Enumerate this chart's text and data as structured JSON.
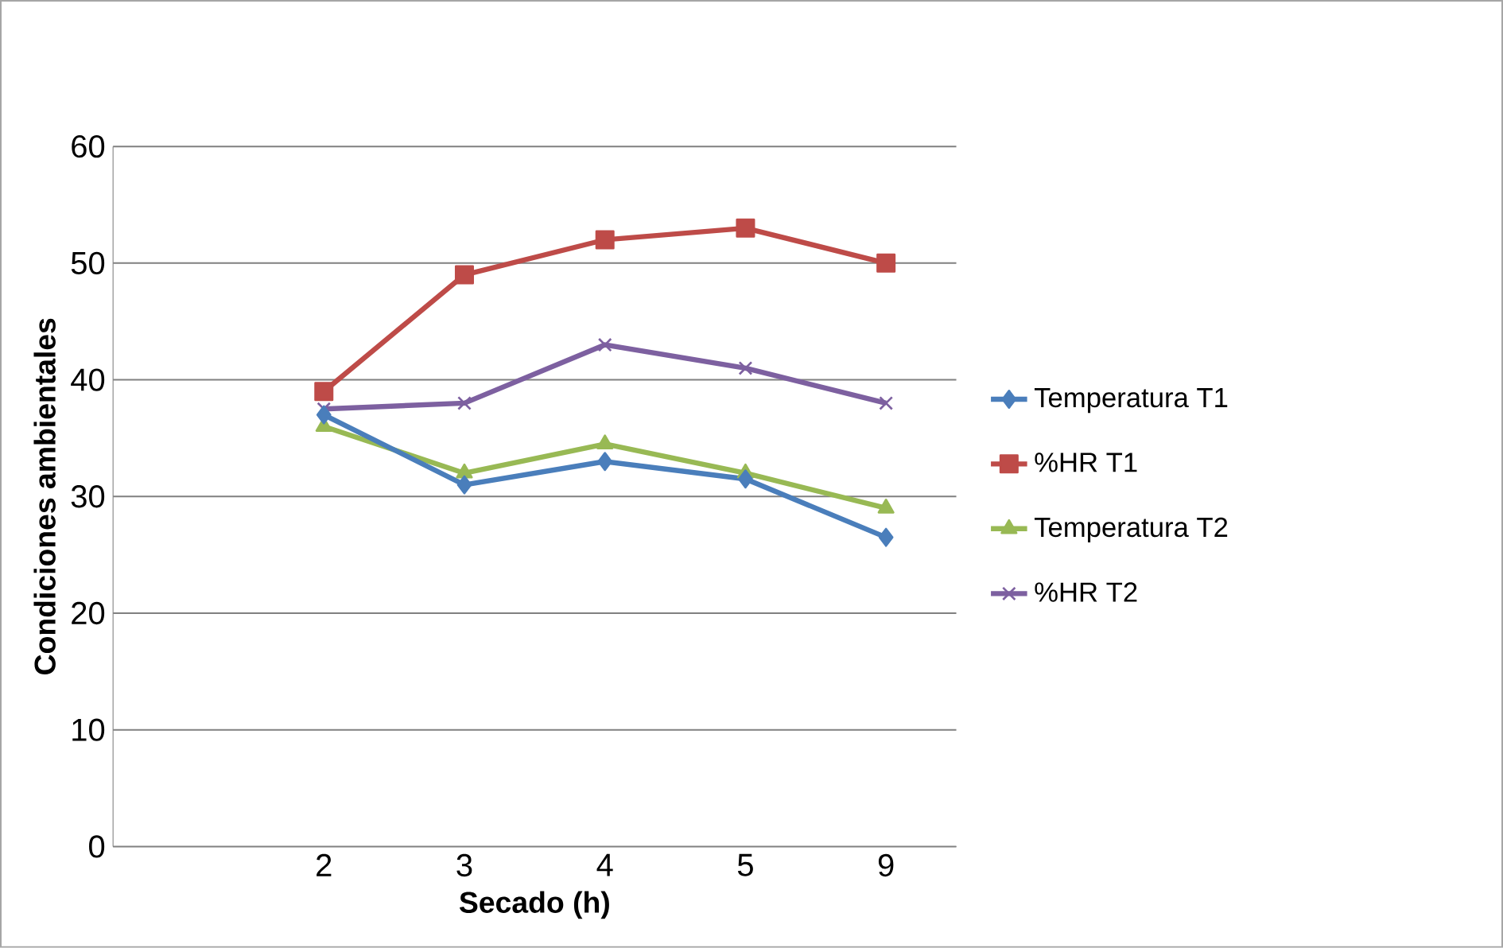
{
  "chart_data": {
    "type": "line",
    "xlabel": "Secado (h)",
    "ylabel": "Condiciones ambientales",
    "categories": [
      null,
      "2",
      "3",
      "4",
      "5",
      "9"
    ],
    "series": [
      {
        "name": "Temperatura T1",
        "color": "#4a7ebb",
        "marker": "diamond",
        "values": [
          null,
          37,
          31,
          33,
          31.5,
          26.5
        ]
      },
      {
        "name": "%HR T1",
        "color": "#be4b48",
        "marker": "square",
        "values": [
          null,
          39,
          49,
          52,
          53,
          50
        ]
      },
      {
        "name": "Temperatura T2",
        "color": "#98b954",
        "marker": "triangle",
        "values": [
          null,
          36,
          32,
          34.5,
          32,
          29
        ]
      },
      {
        "name": "%HR T2",
        "color": "#7d60a0",
        "marker": "cross",
        "values": [
          null,
          37.5,
          38,
          43,
          41,
          38
        ]
      }
    ],
    "ylim": [
      0,
      60
    ],
    "yticks": [
      0,
      10,
      20,
      30,
      40,
      50,
      60
    ],
    "grid": "y",
    "legend": "right"
  }
}
